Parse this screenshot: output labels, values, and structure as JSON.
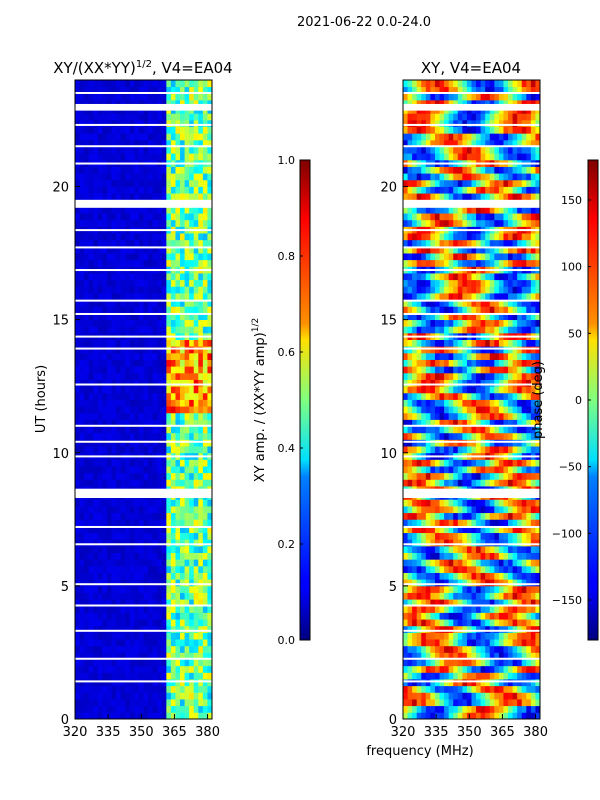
{
  "figure": {
    "suptitle": "2021-06-22 0.0-24.0",
    "xlabel": "frequency (MHz)"
  },
  "chart_data": [
    {
      "type": "heatmap",
      "title_main": "XY/(XX*YY)",
      "title_sup": "1/2",
      "title_tail": ", V4=EA04",
      "xlabel": "",
      "ylabel": "UT (hours)",
      "xlim": [
        320,
        382
      ],
      "ylim": [
        0,
        24
      ],
      "xticks": [
        320,
        335,
        350,
        365,
        380
      ],
      "xtick_labels": [
        "320",
        "335",
        "350",
        "365",
        "380"
      ],
      "yticks": [
        0,
        5,
        10,
        15,
        20
      ],
      "ytick_labels": [
        "0",
        "5",
        "10",
        "15",
        "20"
      ],
      "colormap": "jet",
      "colorbar": {
        "label_main": "XY amp. / (XX*YY amp)",
        "label_sup": "1/2",
        "vmin": 0.0,
        "vmax": 1.0,
        "ticks": [
          0.0,
          0.2,
          0.4,
          0.6,
          0.8,
          1.0
        ],
        "tick_labels": [
          "0.0",
          "0.2",
          "0.4",
          "0.6",
          "0.8",
          "1.0"
        ]
      },
      "summary": "Low amplitude (~0.05) across 320-361 MHz; elevated amplitude (0.3-0.9) in 361-380 MHz columns, strongest near 12-14 UT; blank (flagged) bands at ~8.3-8.6 UT, ~19.3 UT, ~23.0 UT"
    },
    {
      "type": "heatmap",
      "title_main": "XY, V4=EA04",
      "title_sup": "",
      "title_tail": "",
      "xlabel": "frequency (MHz)",
      "ylabel": "",
      "xlim": [
        320,
        382
      ],
      "ylim": [
        0,
        24
      ],
      "xticks": [
        320,
        335,
        350,
        365,
        380
      ],
      "xtick_labels": [
        "320",
        "335",
        "350",
        "365",
        "380"
      ],
      "yticks": [
        0,
        5,
        10,
        15,
        20
      ],
      "ytick_labels": [
        "0",
        "5",
        "10",
        "15",
        "20"
      ],
      "colormap": "jet",
      "colorbar": {
        "label_main": "phase (deg)",
        "label_sup": "",
        "vmin": -180,
        "vmax": 180,
        "ticks": [
          -150,
          -100,
          -50,
          0,
          50,
          100,
          150
        ],
        "tick_labels": [
          "−150",
          "−100",
          "−50",
          "0",
          "50",
          "100",
          "150"
        ]
      },
      "summary": "Phase varies over full -180 to 180 deg range with horizontal banded structure across time; same flagged time bands"
    }
  ],
  "colors": {
    "blank_rows": "#ffffff",
    "axis": "#000000"
  }
}
